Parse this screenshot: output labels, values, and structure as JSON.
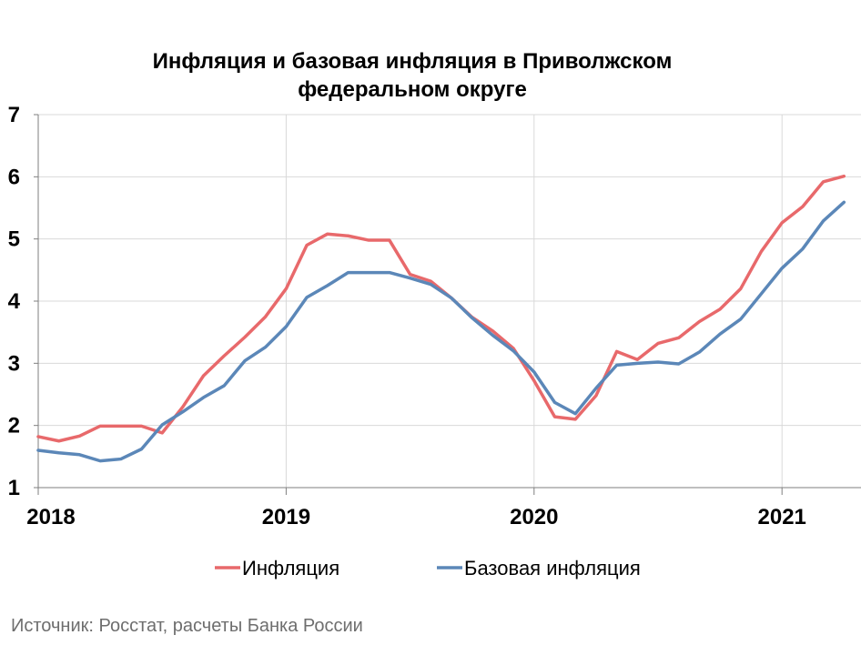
{
  "chart_data": {
    "type": "line",
    "title_line1": "Инфляция и базовая инфляция в Приволжском",
    "title_line2": "федеральном округе",
    "ylim": [
      1,
      7
    ],
    "yticks": [
      "1",
      "2",
      "3",
      "4",
      "5",
      "6",
      "7"
    ],
    "x_year_ticks": [
      "2018",
      "2019",
      "2020",
      "2021"
    ],
    "grid": "vertical at years, horizontal at integers",
    "legend_position": "bottom",
    "x": [
      "2018-01",
      "2018-02",
      "2018-03",
      "2018-04",
      "2018-05",
      "2018-06",
      "2018-07",
      "2018-08",
      "2018-09",
      "2018-10",
      "2018-11",
      "2018-12",
      "2019-01",
      "2019-02",
      "2019-03",
      "2019-04",
      "2019-05",
      "2019-06",
      "2019-07",
      "2019-08",
      "2019-09",
      "2019-10",
      "2019-11",
      "2019-12",
      "2020-01",
      "2020-02",
      "2020-03",
      "2020-04",
      "2020-05",
      "2020-06",
      "2020-07",
      "2020-08",
      "2020-09",
      "2020-10",
      "2020-11",
      "2020-12",
      "2021-01",
      "2021-02",
      "2021-03",
      "2021-04"
    ],
    "series": [
      {
        "name": "Инфляция",
        "color": "#e8696b",
        "values": [
          1.82,
          1.75,
          1.83,
          1.99,
          1.99,
          1.99,
          1.88,
          2.3,
          2.8,
          3.12,
          3.42,
          3.75,
          4.2,
          4.9,
          5.08,
          5.05,
          4.98,
          4.98,
          4.43,
          4.32,
          4.05,
          3.74,
          3.52,
          3.24,
          2.72,
          2.14,
          2.1,
          2.48,
          3.19,
          3.06,
          3.32,
          3.41,
          3.67,
          3.87,
          4.2,
          4.8,
          5.26,
          5.52,
          5.92,
          6.01
        ]
      },
      {
        "name": "Базовая инфляция",
        "color": "#5b87b8",
        "values": [
          1.6,
          1.56,
          1.53,
          1.43,
          1.46,
          1.62,
          2.01,
          2.22,
          2.45,
          2.64,
          3.04,
          3.26,
          3.59,
          4.06,
          4.25,
          4.46,
          4.46,
          4.46,
          4.37,
          4.27,
          4.05,
          3.73,
          3.45,
          3.2,
          2.86,
          2.37,
          2.19,
          2.6,
          2.97,
          3.0,
          3.02,
          2.99,
          3.18,
          3.47,
          3.71,
          4.12,
          4.53,
          4.84,
          5.29,
          5.59
        ]
      }
    ]
  },
  "source": "Источник: Росстат, расчеты Банка России"
}
